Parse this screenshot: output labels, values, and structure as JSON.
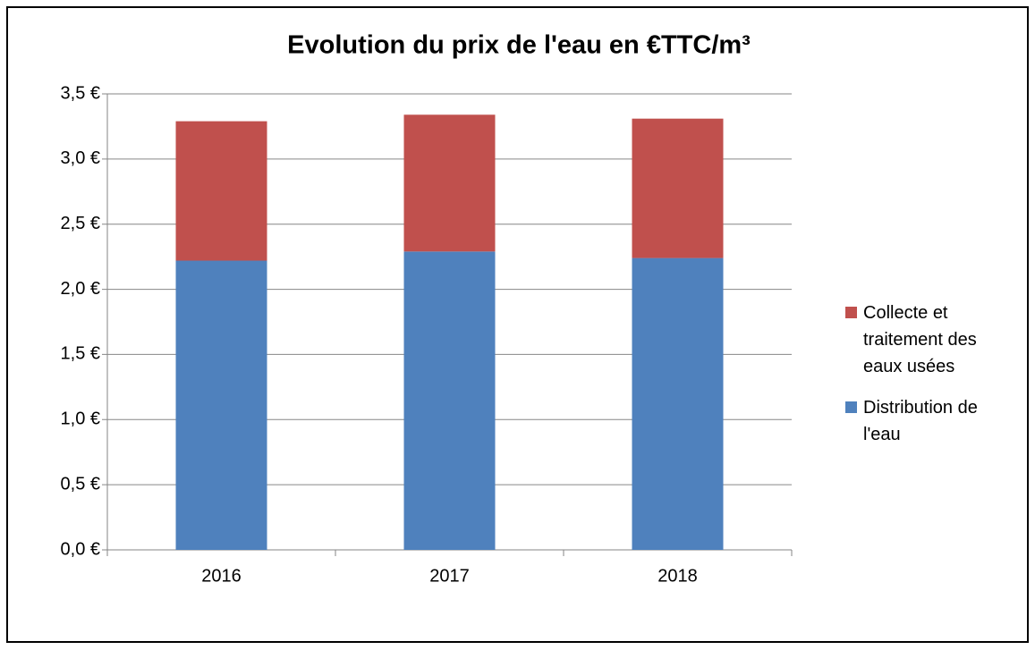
{
  "chart_data": {
    "type": "stacked_bar",
    "title": "Evolution du prix de l'eau en €TTC/m³",
    "categories": [
      "2016",
      "2017",
      "2018"
    ],
    "series": [
      {
        "name": "Distribution de l'eau",
        "color": "#4f81bd",
        "values": [
          2.22,
          2.29,
          2.24
        ]
      },
      {
        "name": "Collecte et traitement des eaux usées",
        "color": "#c0504d",
        "values": [
          1.07,
          1.05,
          1.07
        ]
      }
    ],
    "ylim": [
      0,
      3.5
    ],
    "yticks": [
      {
        "value": 0,
        "label": "0,0 €"
      },
      {
        "value": 0.5,
        "label": "0,5 €"
      },
      {
        "value": 1,
        "label": "1,0 €"
      },
      {
        "value": 1.5,
        "label": "1,5 €"
      },
      {
        "value": 2,
        "label": "2,0 €"
      },
      {
        "value": 2.5,
        "label": "2,5 €"
      },
      {
        "value": 3,
        "label": "3,0 €"
      },
      {
        "value": 3.5,
        "label": "3,5 €"
      }
    ],
    "grid": true,
    "legend": "right"
  }
}
